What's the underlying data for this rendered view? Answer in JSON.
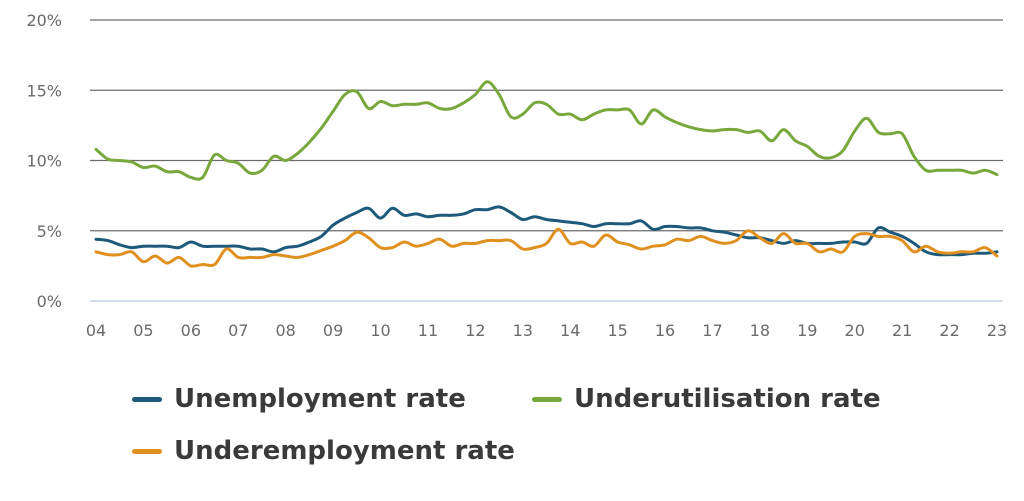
{
  "chart_data": {
    "type": "line",
    "title": "",
    "xlabel": "",
    "ylabel": "",
    "x_ticks": [
      "04",
      "05",
      "06",
      "07",
      "08",
      "09",
      "10",
      "11",
      "12",
      "13",
      "14",
      "15",
      "16",
      "17",
      "18",
      "19",
      "20",
      "21",
      "22",
      "23"
    ],
    "y_ticks": [
      "0%",
      "5%",
      "10%",
      "15%",
      "20%"
    ],
    "ylim": [
      0,
      20
    ],
    "xlim": [
      2004,
      2023
    ],
    "grid": "horizontal",
    "legend_position": "bottom",
    "colors": {
      "unemployment": "#1d5a7a",
      "underutilisation": "#78a83c",
      "underemployment": "#e0901f",
      "grid": "#6b6b6b",
      "axis": "#c6d3e4"
    },
    "series": [
      {
        "name": "Unemployment rate",
        "color": "#1d5a7a",
        "points": [
          [
            2004.0,
            4.4
          ],
          [
            2004.25,
            4.3
          ],
          [
            2004.5,
            4.0
          ],
          [
            2004.75,
            3.8
          ],
          [
            2005.0,
            3.9
          ],
          [
            2005.25,
            3.9
          ],
          [
            2005.5,
            3.9
          ],
          [
            2005.75,
            3.8
          ],
          [
            2006.0,
            4.2
          ],
          [
            2006.25,
            3.9
          ],
          [
            2006.5,
            3.9
          ],
          [
            2006.75,
            3.9
          ],
          [
            2007.0,
            3.9
          ],
          [
            2007.25,
            3.7
          ],
          [
            2007.5,
            3.7
          ],
          [
            2007.75,
            3.5
          ],
          [
            2008.0,
            3.8
          ],
          [
            2008.25,
            3.9
          ],
          [
            2008.5,
            4.2
          ],
          [
            2008.75,
            4.6
          ],
          [
            2009.0,
            5.4
          ],
          [
            2009.25,
            5.9
          ],
          [
            2009.5,
            6.3
          ],
          [
            2009.75,
            6.6
          ],
          [
            2010.0,
            5.9
          ],
          [
            2010.25,
            6.6
          ],
          [
            2010.5,
            6.1
          ],
          [
            2010.75,
            6.2
          ],
          [
            2011.0,
            6.0
          ],
          [
            2011.25,
            6.1
          ],
          [
            2011.5,
            6.1
          ],
          [
            2011.75,
            6.2
          ],
          [
            2012.0,
            6.5
          ],
          [
            2012.25,
            6.5
          ],
          [
            2012.5,
            6.7
          ],
          [
            2012.75,
            6.3
          ],
          [
            2013.0,
            5.8
          ],
          [
            2013.25,
            6.0
          ],
          [
            2013.5,
            5.8
          ],
          [
            2013.75,
            5.7
          ],
          [
            2014.0,
            5.6
          ],
          [
            2014.25,
            5.5
          ],
          [
            2014.5,
            5.3
          ],
          [
            2014.75,
            5.5
          ],
          [
            2015.0,
            5.5
          ],
          [
            2015.25,
            5.5
          ],
          [
            2015.5,
            5.7
          ],
          [
            2015.75,
            5.1
          ],
          [
            2016.0,
            5.3
          ],
          [
            2016.25,
            5.3
          ],
          [
            2016.5,
            5.2
          ],
          [
            2016.75,
            5.2
          ],
          [
            2017.0,
            5.0
          ],
          [
            2017.25,
            4.9
          ],
          [
            2017.5,
            4.7
          ],
          [
            2017.75,
            4.5
          ],
          [
            2018.0,
            4.5
          ],
          [
            2018.25,
            4.3
          ],
          [
            2018.5,
            4.1
          ],
          [
            2018.75,
            4.3
          ],
          [
            2019.0,
            4.1
          ],
          [
            2019.25,
            4.1
          ],
          [
            2019.5,
            4.1
          ],
          [
            2019.75,
            4.2
          ],
          [
            2020.0,
            4.2
          ],
          [
            2020.25,
            4.1
          ],
          [
            2020.5,
            5.2
          ],
          [
            2020.75,
            4.9
          ],
          [
            2021.0,
            4.6
          ],
          [
            2021.25,
            4.1
          ],
          [
            2021.5,
            3.5
          ],
          [
            2021.75,
            3.3
          ],
          [
            2022.0,
            3.3
          ],
          [
            2022.25,
            3.3
          ],
          [
            2022.5,
            3.4
          ],
          [
            2022.75,
            3.4
          ],
          [
            2023.0,
            3.5
          ]
        ]
      },
      {
        "name": "Underutilisation rate",
        "color": "#78a83c",
        "points": [
          [
            2004.0,
            10.8
          ],
          [
            2004.25,
            10.1
          ],
          [
            2004.5,
            10.0
          ],
          [
            2004.75,
            9.9
          ],
          [
            2005.0,
            9.5
          ],
          [
            2005.25,
            9.6
          ],
          [
            2005.5,
            9.2
          ],
          [
            2005.75,
            9.2
          ],
          [
            2006.0,
            8.8
          ],
          [
            2006.25,
            8.8
          ],
          [
            2006.5,
            10.4
          ],
          [
            2006.75,
            10.0
          ],
          [
            2007.0,
            9.8
          ],
          [
            2007.25,
            9.1
          ],
          [
            2007.5,
            9.3
          ],
          [
            2007.75,
            10.3
          ],
          [
            2008.0,
            10.0
          ],
          [
            2008.25,
            10.5
          ],
          [
            2008.5,
            11.3
          ],
          [
            2008.75,
            12.3
          ],
          [
            2009.0,
            13.5
          ],
          [
            2009.25,
            14.7
          ],
          [
            2009.5,
            14.9
          ],
          [
            2009.75,
            13.7
          ],
          [
            2010.0,
            14.2
          ],
          [
            2010.25,
            13.9
          ],
          [
            2010.5,
            14.0
          ],
          [
            2010.75,
            14.0
          ],
          [
            2011.0,
            14.1
          ],
          [
            2011.25,
            13.7
          ],
          [
            2011.5,
            13.7
          ],
          [
            2011.75,
            14.1
          ],
          [
            2012.0,
            14.7
          ],
          [
            2012.25,
            15.6
          ],
          [
            2012.5,
            14.7
          ],
          [
            2012.75,
            13.1
          ],
          [
            2013.0,
            13.3
          ],
          [
            2013.25,
            14.1
          ],
          [
            2013.5,
            14.0
          ],
          [
            2013.75,
            13.3
          ],
          [
            2014.0,
            13.3
          ],
          [
            2014.25,
            12.9
          ],
          [
            2014.5,
            13.3
          ],
          [
            2014.75,
            13.6
          ],
          [
            2015.0,
            13.6
          ],
          [
            2015.25,
            13.6
          ],
          [
            2015.5,
            12.6
          ],
          [
            2015.75,
            13.6
          ],
          [
            2016.0,
            13.1
          ],
          [
            2016.25,
            12.7
          ],
          [
            2016.5,
            12.4
          ],
          [
            2016.75,
            12.2
          ],
          [
            2017.0,
            12.1
          ],
          [
            2017.25,
            12.2
          ],
          [
            2017.5,
            12.2
          ],
          [
            2017.75,
            12.0
          ],
          [
            2018.0,
            12.1
          ],
          [
            2018.25,
            11.4
          ],
          [
            2018.5,
            12.2
          ],
          [
            2018.75,
            11.4
          ],
          [
            2019.0,
            11.0
          ],
          [
            2019.25,
            10.3
          ],
          [
            2019.5,
            10.2
          ],
          [
            2019.75,
            10.7
          ],
          [
            2020.0,
            12.1
          ],
          [
            2020.25,
            13.0
          ],
          [
            2020.5,
            12.0
          ],
          [
            2020.75,
            11.9
          ],
          [
            2021.0,
            11.9
          ],
          [
            2021.25,
            10.3
          ],
          [
            2021.5,
            9.3
          ],
          [
            2021.75,
            9.3
          ],
          [
            2022.0,
            9.3
          ],
          [
            2022.25,
            9.3
          ],
          [
            2022.5,
            9.1
          ],
          [
            2022.75,
            9.3
          ],
          [
            2023.0,
            9.0
          ]
        ]
      },
      {
        "name": "Underemployment rate",
        "color": "#e0901f",
        "points": [
          [
            2004.0,
            3.5
          ],
          [
            2004.25,
            3.3
          ],
          [
            2004.5,
            3.3
          ],
          [
            2004.75,
            3.5
          ],
          [
            2005.0,
            2.8
          ],
          [
            2005.25,
            3.2
          ],
          [
            2005.5,
            2.7
          ],
          [
            2005.75,
            3.1
          ],
          [
            2006.0,
            2.5
          ],
          [
            2006.25,
            2.6
          ],
          [
            2006.5,
            2.6
          ],
          [
            2006.75,
            3.7
          ],
          [
            2007.0,
            3.1
          ],
          [
            2007.25,
            3.1
          ],
          [
            2007.5,
            3.1
          ],
          [
            2007.75,
            3.3
          ],
          [
            2008.0,
            3.2
          ],
          [
            2008.25,
            3.1
          ],
          [
            2008.5,
            3.3
          ],
          [
            2008.75,
            3.6
          ],
          [
            2009.0,
            3.9
          ],
          [
            2009.25,
            4.3
          ],
          [
            2009.5,
            4.9
          ],
          [
            2009.75,
            4.5
          ],
          [
            2010.0,
            3.8
          ],
          [
            2010.25,
            3.8
          ],
          [
            2010.5,
            4.2
          ],
          [
            2010.75,
            3.9
          ],
          [
            2011.0,
            4.1
          ],
          [
            2011.25,
            4.4
          ],
          [
            2011.5,
            3.9
          ],
          [
            2011.75,
            4.1
          ],
          [
            2012.0,
            4.1
          ],
          [
            2012.25,
            4.3
          ],
          [
            2012.5,
            4.3
          ],
          [
            2012.75,
            4.3
          ],
          [
            2013.0,
            3.7
          ],
          [
            2013.25,
            3.8
          ],
          [
            2013.5,
            4.1
          ],
          [
            2013.75,
            5.1
          ],
          [
            2014.0,
            4.1
          ],
          [
            2014.25,
            4.2
          ],
          [
            2014.5,
            3.9
          ],
          [
            2014.75,
            4.7
          ],
          [
            2015.0,
            4.2
          ],
          [
            2015.25,
            4.0
          ],
          [
            2015.5,
            3.7
          ],
          [
            2015.75,
            3.9
          ],
          [
            2016.0,
            4.0
          ],
          [
            2016.25,
            4.4
          ],
          [
            2016.5,
            4.3
          ],
          [
            2016.75,
            4.6
          ],
          [
            2017.0,
            4.3
          ],
          [
            2017.25,
            4.1
          ],
          [
            2017.5,
            4.3
          ],
          [
            2017.75,
            5.0
          ],
          [
            2018.0,
            4.5
          ],
          [
            2018.25,
            4.1
          ],
          [
            2018.5,
            4.8
          ],
          [
            2018.75,
            4.1
          ],
          [
            2019.0,
            4.1
          ],
          [
            2019.25,
            3.5
          ],
          [
            2019.5,
            3.7
          ],
          [
            2019.75,
            3.5
          ],
          [
            2020.0,
            4.6
          ],
          [
            2020.25,
            4.8
          ],
          [
            2020.5,
            4.6
          ],
          [
            2020.75,
            4.6
          ],
          [
            2021.0,
            4.3
          ],
          [
            2021.25,
            3.5
          ],
          [
            2021.5,
            3.9
          ],
          [
            2021.75,
            3.5
          ],
          [
            2022.0,
            3.4
          ],
          [
            2022.25,
            3.5
          ],
          [
            2022.5,
            3.5
          ],
          [
            2022.75,
            3.8
          ],
          [
            2023.0,
            3.2
          ]
        ]
      }
    ]
  }
}
